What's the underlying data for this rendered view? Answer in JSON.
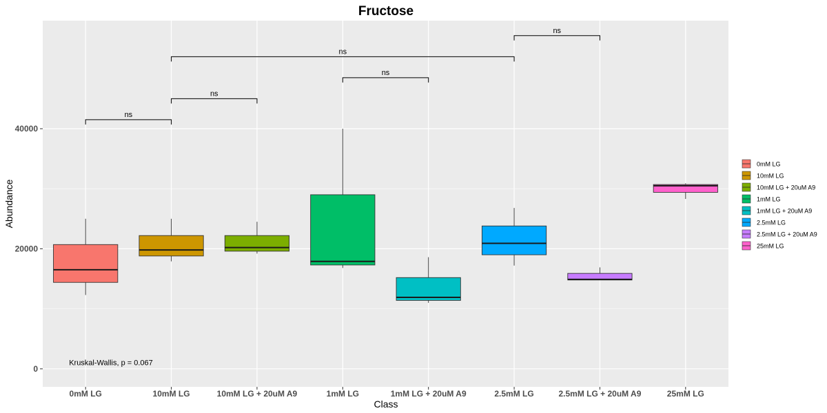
{
  "chart_data": {
    "type": "box",
    "title": "Fructose",
    "xlabel": "Class",
    "ylabel": "Abundance",
    "ylim": [
      -3000,
      58000
    ],
    "yticks": [
      0,
      20000,
      40000
    ],
    "ytick_labels": [
      "0",
      "20000",
      "40000"
    ],
    "grid": true,
    "legend_position": "right",
    "categories": [
      "0mM LG",
      "10mM LG",
      "10mM LG + 20uM A9",
      "1mM LG",
      "1mM LG + 20uM A9",
      "2.5mM LG",
      "2.5mM LG + 20uM A9",
      "25mM LG"
    ],
    "colors": [
      "#F8766D",
      "#CD9600",
      "#7CAE00",
      "#00BE67",
      "#00BFC4",
      "#00A9FF",
      "#C77CFF",
      "#FF61CC"
    ],
    "boxes": [
      {
        "category": "0mM LG",
        "min": 12300,
        "q1": 14400,
        "median": 16500,
        "q3": 20700,
        "max": 25000
      },
      {
        "category": "10mM LG",
        "min": 17900,
        "q1": 18800,
        "median": 19800,
        "q3": 22200,
        "max": 25000
      },
      {
        "category": "10mM LG + 20uM A9",
        "min": 19200,
        "q1": 19600,
        "median": 20200,
        "q3": 22200,
        "max": 24500
      },
      {
        "category": "1mM LG",
        "min": 16800,
        "q1": 17300,
        "median": 17900,
        "q3": 29000,
        "max": 40000
      },
      {
        "category": "1mM LG + 20uM A9",
        "min": 11000,
        "q1": 11400,
        "median": 11900,
        "q3": 15200,
        "max": 18600
      },
      {
        "category": "2.5mM LG",
        "min": 17200,
        "q1": 19000,
        "median": 20900,
        "q3": 23800,
        "max": 26800
      },
      {
        "category": "2.5mM LG + 20uM A9",
        "min": 14800,
        "q1": 14800,
        "median": 14900,
        "q3": 15900,
        "max": 16900
      },
      {
        "category": "25mM LG",
        "min": 28300,
        "q1": 29400,
        "median": 30500,
        "q3": 30700,
        "max": 30900
      }
    ],
    "comparisons": [
      {
        "from": "0mM LG",
        "to": "10mM LG",
        "y": 41500,
        "label": "ns"
      },
      {
        "from": "10mM LG",
        "to": "10mM LG + 20uM A9",
        "y": 45000,
        "label": "ns"
      },
      {
        "from": "1mM LG",
        "to": "1mM LG + 20uM A9",
        "y": 48500,
        "label": "ns"
      },
      {
        "from": "10mM LG",
        "to": "2.5mM LG",
        "y": 52000,
        "label": "ns"
      },
      {
        "from": "2.5mM LG",
        "to": "2.5mM LG + 20uM A9",
        "y": 55500,
        "label": "ns"
      }
    ],
    "annotation": {
      "text": "Kruskal-Wallis, p = 0.067",
      "x_category": "0mM LG",
      "y": 500
    }
  }
}
